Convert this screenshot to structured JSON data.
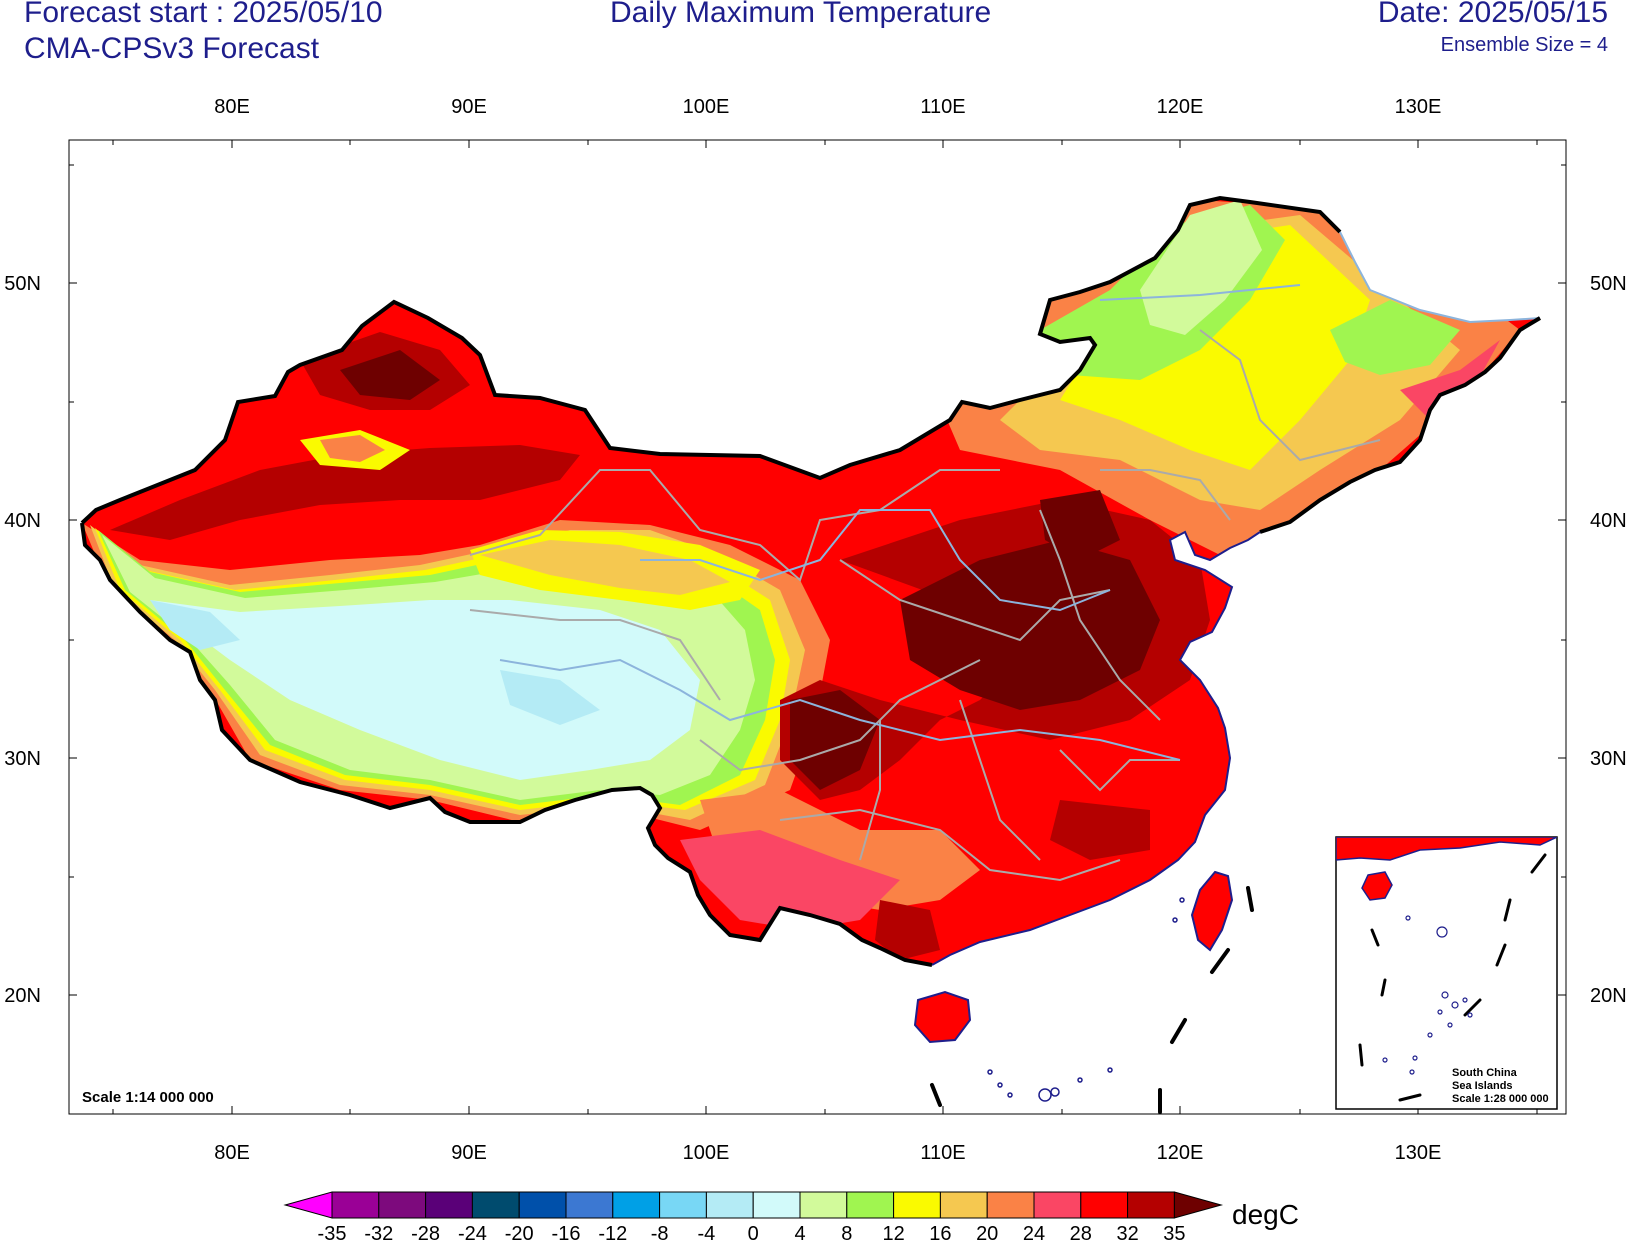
{
  "header": {
    "forecast_start": "Forecast start : 2025/05/10",
    "model": "CMA-CPSv3 Forecast",
    "title": "Daily Maximum Temperature",
    "date": "Date: 2025/05/15",
    "ensemble": "Ensemble Size = 4"
  },
  "map": {
    "lon_ticks": [
      "80E",
      "90E",
      "100E",
      "110E",
      "120E",
      "130E"
    ],
    "lat_ticks": [
      "50N",
      "40N",
      "30N",
      "20N"
    ],
    "scale_label": "Scale 1:14 000 000",
    "inset": {
      "title_line1": "South China",
      "title_line2": "Sea Islands",
      "scale": "Scale 1:28 000 000"
    }
  },
  "colorbar": {
    "unit": "degC",
    "levels": [
      "-35",
      "-32",
      "-28",
      "-24",
      "-20",
      "-16",
      "-12",
      "-8",
      "-4",
      "0",
      "4",
      "8",
      "12",
      "16",
      "20",
      "24",
      "28",
      "32",
      "35"
    ],
    "colors": [
      "#ff00ff",
      "#9a0096",
      "#7d0a7d",
      "#5a0078",
      "#004b6e",
      "#0050aa",
      "#3c78d2",
      "#00a0e6",
      "#78d7f5",
      "#b4ebf5",
      "#d2fafa",
      "#d2fa9b",
      "#a0f550",
      "#fafa00",
      "#f5c850",
      "#fa8246",
      "#fa4664",
      "#ff0000",
      "#b40000",
      "#6e0000"
    ]
  }
}
